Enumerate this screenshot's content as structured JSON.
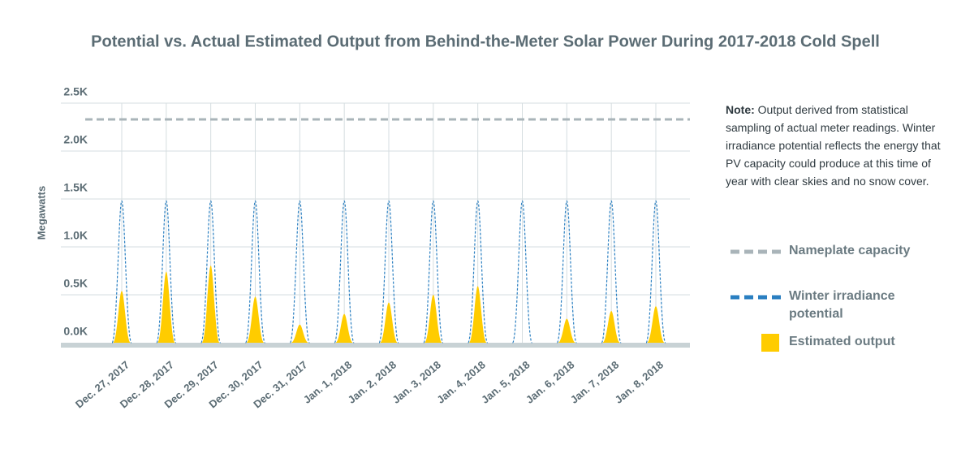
{
  "chart_data": {
    "type": "line",
    "title": "Potential vs. Actual Estimated Output from Behind-the-Meter Solar Power During 2017-2018 Cold Spell",
    "y_label": "Megawatts",
    "note_label": "Note:",
    "note": "Output derived from statistical sampling of actual meter readings. Winter irradiance potential reflects the energy that PV capacity could produce at this time of year with clear skies and no snow cover.",
    "categories": [
      "Dec. 27, 2017",
      "Dec. 28, 2017",
      "Dec. 29, 2017",
      "Dec. 30, 2017",
      "Dec. 31, 2017",
      "Jan. 1, 2018",
      "Jan. 2, 2018",
      "Jan. 3, 2018",
      "Jan. 4, 2018",
      "Jan. 5, 2018",
      "Jan. 6, 2018",
      "Jan. 7, 2018",
      "Jan. 8, 2018"
    ],
    "series": [
      {
        "name": "Nameplate capacity",
        "color": "#a9b4b9",
        "style": "flat",
        "values": [
          2330,
          2330,
          2330,
          2330,
          2330,
          2330,
          2330,
          2330,
          2330,
          2330,
          2330,
          2330,
          2330
        ]
      },
      {
        "name": "Winter irradiance potential",
        "color": "#2a7fc1",
        "style": "peak",
        "values": [
          1480,
          1480,
          1480,
          1480,
          1480,
          1480,
          1480,
          1480,
          1480,
          1480,
          1480,
          1480,
          1480
        ]
      },
      {
        "name": "Estimated output",
        "color": "#ffcc00",
        "style": "fill",
        "values": [
          540,
          740,
          805,
          480,
          190,
          300,
          420,
          500,
          590,
          0,
          250,
          330,
          380
        ]
      }
    ],
    "ylim": [
      0,
      2500
    ],
    "yticks": [
      {
        "value": 0,
        "label": "0.0K"
      },
      {
        "value": 500,
        "label": "0.5K"
      },
      {
        "value": 1000,
        "label": "1.0K"
      },
      {
        "value": 1500,
        "label": "1.5K"
      },
      {
        "value": 2000,
        "label": "2.0K"
      },
      {
        "value": 2500,
        "label": "2.5K"
      }
    ],
    "grid": true
  }
}
